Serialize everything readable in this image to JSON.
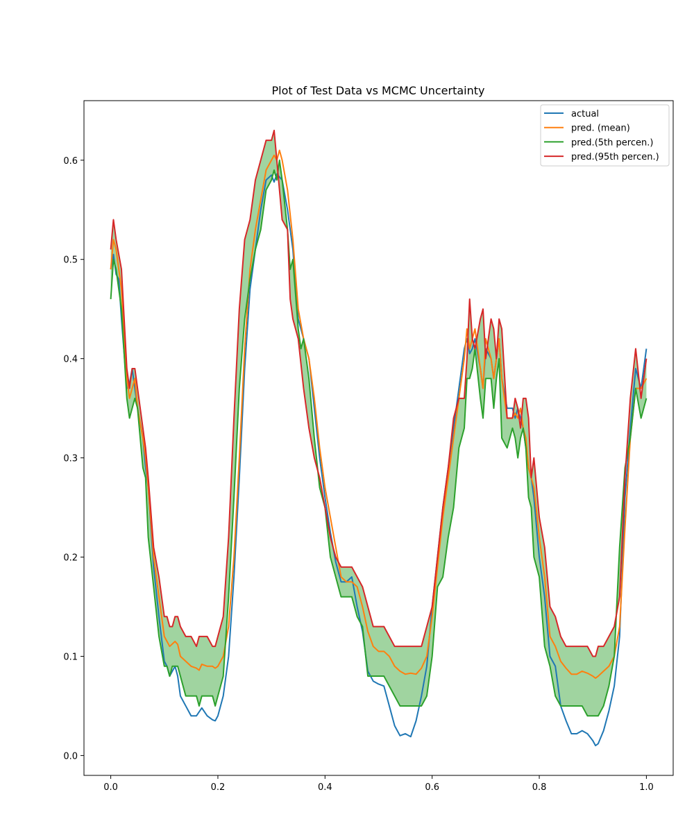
{
  "chart_data": {
    "type": "line",
    "title": "Plot of Test Data vs MCMC Uncertainty",
    "xlabel": "",
    "ylabel": "",
    "xlim": [
      -0.05,
      1.05
    ],
    "ylim": [
      -0.02,
      0.66
    ],
    "x_ticks": [
      0.0,
      0.2,
      0.4,
      0.6,
      0.8,
      1.0
    ],
    "x_tick_labels": [
      "0.0",
      "0.2",
      "0.4",
      "0.6",
      "0.8",
      "1.0"
    ],
    "y_ticks": [
      0.0,
      0.1,
      0.2,
      0.3,
      0.4,
      0.5,
      0.6
    ],
    "y_tick_labels": [
      "0.0",
      "0.1",
      "0.2",
      "0.3",
      "0.4",
      "0.5",
      "0.6"
    ],
    "grid": false,
    "legend_position": "top-right",
    "band": {
      "between": [
        "pred.(5th percen.)",
        "pred.(95th percen.)"
      ],
      "color": "#2ca02c",
      "opacity": 0.45
    },
    "series": [
      {
        "name": "actual",
        "color": "#1f77b4",
        "x": [
          0.0,
          0.005,
          0.01,
          0.015,
          0.02,
          0.03,
          0.035,
          0.04,
          0.045,
          0.05,
          0.06,
          0.065,
          0.07,
          0.08,
          0.09,
          0.1,
          0.105,
          0.11,
          0.115,
          0.12,
          0.125,
          0.13,
          0.14,
          0.15,
          0.16,
          0.17,
          0.18,
          0.19,
          0.195,
          0.2,
          0.21,
          0.22,
          0.23,
          0.24,
          0.25,
          0.26,
          0.27,
          0.28,
          0.29,
          0.3,
          0.305,
          0.31,
          0.315,
          0.32,
          0.33,
          0.34,
          0.35,
          0.36,
          0.37,
          0.38,
          0.39,
          0.4,
          0.41,
          0.42,
          0.43,
          0.44,
          0.45,
          0.46,
          0.47,
          0.48,
          0.49,
          0.5,
          0.51,
          0.52,
          0.53,
          0.54,
          0.55,
          0.56,
          0.57,
          0.58,
          0.59,
          0.6,
          0.61,
          0.62,
          0.63,
          0.64,
          0.65,
          0.66,
          0.665,
          0.67,
          0.675,
          0.68,
          0.69,
          0.695,
          0.7,
          0.71,
          0.715,
          0.72,
          0.725,
          0.73,
          0.74,
          0.75,
          0.755,
          0.76,
          0.765,
          0.77,
          0.775,
          0.78,
          0.785,
          0.79,
          0.8,
          0.81,
          0.82,
          0.83,
          0.84,
          0.85,
          0.86,
          0.87,
          0.88,
          0.89,
          0.9,
          0.905,
          0.91,
          0.92,
          0.93,
          0.94,
          0.95,
          0.96,
          0.97,
          0.98,
          0.99,
          1.0
        ],
        "values": [
          0.49,
          0.505,
          0.485,
          0.48,
          0.44,
          0.37,
          0.375,
          0.39,
          0.37,
          0.35,
          0.32,
          0.29,
          0.27,
          0.19,
          0.14,
          0.095,
          0.09,
          0.08,
          0.085,
          0.09,
          0.08,
          0.06,
          0.05,
          0.04,
          0.04,
          0.048,
          0.04,
          0.036,
          0.035,
          0.04,
          0.06,
          0.1,
          0.18,
          0.28,
          0.39,
          0.47,
          0.51,
          0.55,
          0.58,
          0.585,
          0.578,
          0.586,
          0.583,
          0.58,
          0.55,
          0.51,
          0.44,
          0.42,
          0.4,
          0.35,
          0.3,
          0.26,
          0.225,
          0.195,
          0.175,
          0.175,
          0.18,
          0.15,
          0.125,
          0.085,
          0.075,
          0.072,
          0.07,
          0.05,
          0.03,
          0.02,
          0.022,
          0.019,
          0.035,
          0.06,
          0.09,
          0.15,
          0.2,
          0.25,
          0.29,
          0.33,
          0.37,
          0.41,
          0.42,
          0.405,
          0.41,
          0.42,
          0.39,
          0.37,
          0.41,
          0.4,
          0.38,
          0.4,
          0.42,
          0.38,
          0.35,
          0.35,
          0.34,
          0.35,
          0.34,
          0.33,
          0.31,
          0.29,
          0.28,
          0.26,
          0.2,
          0.16,
          0.1,
          0.09,
          0.05,
          0.035,
          0.022,
          0.022,
          0.025,
          0.022,
          0.015,
          0.01,
          0.012,
          0.025,
          0.045,
          0.07,
          0.12,
          0.26,
          0.33,
          0.39,
          0.37,
          0.41
        ]
      },
      {
        "name": "pred. (mean)",
        "color": "#ff7f0e",
        "x": [
          0.0,
          0.005,
          0.01,
          0.02,
          0.03,
          0.035,
          0.04,
          0.045,
          0.05,
          0.06,
          0.065,
          0.07,
          0.08,
          0.09,
          0.1,
          0.105,
          0.11,
          0.12,
          0.125,
          0.13,
          0.14,
          0.15,
          0.16,
          0.165,
          0.17,
          0.18,
          0.19,
          0.195,
          0.2,
          0.21,
          0.22,
          0.23,
          0.24,
          0.25,
          0.26,
          0.27,
          0.28,
          0.29,
          0.3,
          0.305,
          0.31,
          0.315,
          0.32,
          0.33,
          0.34,
          0.35,
          0.36,
          0.37,
          0.38,
          0.39,
          0.4,
          0.41,
          0.42,
          0.43,
          0.44,
          0.45,
          0.46,
          0.47,
          0.48,
          0.49,
          0.5,
          0.51,
          0.52,
          0.53,
          0.54,
          0.55,
          0.56,
          0.57,
          0.58,
          0.59,
          0.6,
          0.61,
          0.62,
          0.63,
          0.64,
          0.65,
          0.66,
          0.665,
          0.67,
          0.675,
          0.68,
          0.69,
          0.695,
          0.7,
          0.71,
          0.715,
          0.72,
          0.725,
          0.73,
          0.74,
          0.75,
          0.755,
          0.76,
          0.765,
          0.77,
          0.775,
          0.78,
          0.785,
          0.79,
          0.8,
          0.81,
          0.82,
          0.83,
          0.84,
          0.85,
          0.86,
          0.87,
          0.88,
          0.89,
          0.9,
          0.905,
          0.91,
          0.92,
          0.93,
          0.94,
          0.95,
          0.96,
          0.97,
          0.98,
          0.99,
          1.0
        ],
        "values": [
          0.49,
          0.52,
          0.51,
          0.47,
          0.38,
          0.36,
          0.37,
          0.38,
          0.35,
          0.32,
          0.3,
          0.27,
          0.2,
          0.16,
          0.12,
          0.115,
          0.11,
          0.115,
          0.112,
          0.1,
          0.095,
          0.09,
          0.088,
          0.086,
          0.092,
          0.09,
          0.09,
          0.088,
          0.09,
          0.1,
          0.13,
          0.2,
          0.3,
          0.41,
          0.49,
          0.53,
          0.56,
          0.59,
          0.6,
          0.605,
          0.6,
          0.61,
          0.6,
          0.57,
          0.52,
          0.45,
          0.42,
          0.4,
          0.36,
          0.31,
          0.27,
          0.24,
          0.21,
          0.18,
          0.175,
          0.175,
          0.17,
          0.15,
          0.125,
          0.11,
          0.105,
          0.105,
          0.1,
          0.09,
          0.085,
          0.082,
          0.083,
          0.082,
          0.088,
          0.1,
          0.14,
          0.19,
          0.24,
          0.28,
          0.32,
          0.36,
          0.4,
          0.43,
          0.41,
          0.42,
          0.43,
          0.39,
          0.37,
          0.42,
          0.4,
          0.38,
          0.4,
          0.42,
          0.38,
          0.34,
          0.34,
          0.345,
          0.34,
          0.35,
          0.33,
          0.32,
          0.29,
          0.28,
          0.27,
          0.22,
          0.18,
          0.12,
          0.11,
          0.095,
          0.088,
          0.082,
          0.082,
          0.085,
          0.083,
          0.08,
          0.078,
          0.08,
          0.085,
          0.09,
          0.1,
          0.13,
          0.23,
          0.32,
          0.37,
          0.37,
          0.38
        ]
      },
      {
        "name": "pred.(5th percen.)",
        "color": "#2ca02c",
        "x": [
          0.0,
          0.005,
          0.01,
          0.02,
          0.03,
          0.035,
          0.04,
          0.045,
          0.05,
          0.06,
          0.065,
          0.07,
          0.08,
          0.09,
          0.1,
          0.105,
          0.11,
          0.115,
          0.12,
          0.125,
          0.13,
          0.14,
          0.15,
          0.16,
          0.165,
          0.17,
          0.18,
          0.19,
          0.195,
          0.2,
          0.21,
          0.22,
          0.23,
          0.24,
          0.25,
          0.26,
          0.27,
          0.28,
          0.29,
          0.3,
          0.305,
          0.31,
          0.315,
          0.32,
          0.33,
          0.335,
          0.34,
          0.35,
          0.355,
          0.36,
          0.37,
          0.38,
          0.39,
          0.4,
          0.41,
          0.42,
          0.43,
          0.44,
          0.45,
          0.46,
          0.47,
          0.48,
          0.49,
          0.5,
          0.51,
          0.52,
          0.53,
          0.54,
          0.55,
          0.56,
          0.57,
          0.58,
          0.59,
          0.6,
          0.61,
          0.62,
          0.63,
          0.64,
          0.65,
          0.66,
          0.665,
          0.67,
          0.675,
          0.68,
          0.69,
          0.695,
          0.7,
          0.71,
          0.715,
          0.72,
          0.725,
          0.73,
          0.74,
          0.75,
          0.755,
          0.76,
          0.765,
          0.77,
          0.775,
          0.78,
          0.785,
          0.79,
          0.8,
          0.81,
          0.82,
          0.83,
          0.84,
          0.85,
          0.86,
          0.87,
          0.88,
          0.89,
          0.9,
          0.905,
          0.91,
          0.92,
          0.93,
          0.94,
          0.95,
          0.96,
          0.97,
          0.98,
          0.99,
          1.0
        ],
        "values": [
          0.46,
          0.5,
          0.49,
          0.45,
          0.36,
          0.34,
          0.35,
          0.36,
          0.35,
          0.29,
          0.28,
          0.22,
          0.17,
          0.12,
          0.09,
          0.09,
          0.08,
          0.09,
          0.09,
          0.09,
          0.08,
          0.06,
          0.06,
          0.06,
          0.05,
          0.06,
          0.06,
          0.06,
          0.05,
          0.06,
          0.08,
          0.16,
          0.26,
          0.37,
          0.44,
          0.48,
          0.51,
          0.53,
          0.57,
          0.58,
          0.59,
          0.58,
          0.6,
          0.58,
          0.53,
          0.49,
          0.5,
          0.43,
          0.41,
          0.42,
          0.38,
          0.32,
          0.27,
          0.25,
          0.2,
          0.18,
          0.16,
          0.16,
          0.16,
          0.14,
          0.13,
          0.08,
          0.08,
          0.08,
          0.08,
          0.07,
          0.06,
          0.05,
          0.05,
          0.05,
          0.05,
          0.05,
          0.06,
          0.1,
          0.17,
          0.18,
          0.22,
          0.25,
          0.31,
          0.33,
          0.38,
          0.38,
          0.39,
          0.41,
          0.36,
          0.34,
          0.38,
          0.38,
          0.35,
          0.38,
          0.4,
          0.32,
          0.31,
          0.33,
          0.32,
          0.3,
          0.32,
          0.33,
          0.31,
          0.26,
          0.25,
          0.2,
          0.18,
          0.11,
          0.09,
          0.06,
          0.05,
          0.05,
          0.05,
          0.05,
          0.05,
          0.04,
          0.04,
          0.04,
          0.04,
          0.05,
          0.07,
          0.1,
          0.21,
          0.29,
          0.32,
          0.37,
          0.34,
          0.36
        ]
      },
      {
        "name": "pred.(95th percen.)",
        "color": "#d62728",
        "x": [
          0.0,
          0.005,
          0.01,
          0.02,
          0.03,
          0.035,
          0.04,
          0.045,
          0.05,
          0.06,
          0.065,
          0.07,
          0.08,
          0.09,
          0.1,
          0.105,
          0.11,
          0.115,
          0.12,
          0.125,
          0.13,
          0.14,
          0.15,
          0.16,
          0.165,
          0.17,
          0.18,
          0.19,
          0.195,
          0.2,
          0.21,
          0.22,
          0.23,
          0.24,
          0.25,
          0.26,
          0.27,
          0.28,
          0.29,
          0.3,
          0.305,
          0.31,
          0.315,
          0.32,
          0.33,
          0.335,
          0.34,
          0.35,
          0.36,
          0.37,
          0.38,
          0.39,
          0.4,
          0.41,
          0.42,
          0.43,
          0.44,
          0.45,
          0.46,
          0.47,
          0.48,
          0.49,
          0.5,
          0.51,
          0.52,
          0.53,
          0.54,
          0.55,
          0.56,
          0.57,
          0.58,
          0.59,
          0.6,
          0.61,
          0.62,
          0.63,
          0.64,
          0.65,
          0.66,
          0.665,
          0.67,
          0.675,
          0.68,
          0.69,
          0.695,
          0.7,
          0.71,
          0.715,
          0.72,
          0.725,
          0.73,
          0.74,
          0.75,
          0.755,
          0.76,
          0.765,
          0.77,
          0.775,
          0.78,
          0.785,
          0.79,
          0.8,
          0.81,
          0.82,
          0.83,
          0.84,
          0.85,
          0.86,
          0.87,
          0.88,
          0.89,
          0.9,
          0.905,
          0.91,
          0.92,
          0.93,
          0.94,
          0.95,
          0.96,
          0.97,
          0.98,
          0.99,
          1.0
        ],
        "values": [
          0.51,
          0.54,
          0.52,
          0.49,
          0.39,
          0.37,
          0.39,
          0.39,
          0.37,
          0.33,
          0.31,
          0.28,
          0.21,
          0.18,
          0.14,
          0.14,
          0.13,
          0.13,
          0.14,
          0.14,
          0.13,
          0.12,
          0.12,
          0.11,
          0.12,
          0.12,
          0.12,
          0.11,
          0.11,
          0.12,
          0.14,
          0.22,
          0.34,
          0.45,
          0.52,
          0.54,
          0.58,
          0.6,
          0.62,
          0.62,
          0.63,
          0.6,
          0.57,
          0.54,
          0.53,
          0.46,
          0.44,
          0.42,
          0.37,
          0.33,
          0.3,
          0.28,
          0.25,
          0.22,
          0.2,
          0.19,
          0.19,
          0.19,
          0.18,
          0.17,
          0.15,
          0.13,
          0.13,
          0.13,
          0.12,
          0.11,
          0.11,
          0.11,
          0.11,
          0.11,
          0.11,
          0.13,
          0.15,
          0.2,
          0.25,
          0.29,
          0.34,
          0.36,
          0.36,
          0.4,
          0.46,
          0.42,
          0.41,
          0.44,
          0.45,
          0.4,
          0.44,
          0.43,
          0.4,
          0.44,
          0.43,
          0.34,
          0.34,
          0.36,
          0.35,
          0.33,
          0.36,
          0.36,
          0.34,
          0.28,
          0.3,
          0.24,
          0.21,
          0.15,
          0.14,
          0.12,
          0.11,
          0.11,
          0.11,
          0.11,
          0.11,
          0.1,
          0.1,
          0.11,
          0.11,
          0.12,
          0.13,
          0.16,
          0.28,
          0.36,
          0.41,
          0.36,
          0.4
        ]
      }
    ]
  }
}
